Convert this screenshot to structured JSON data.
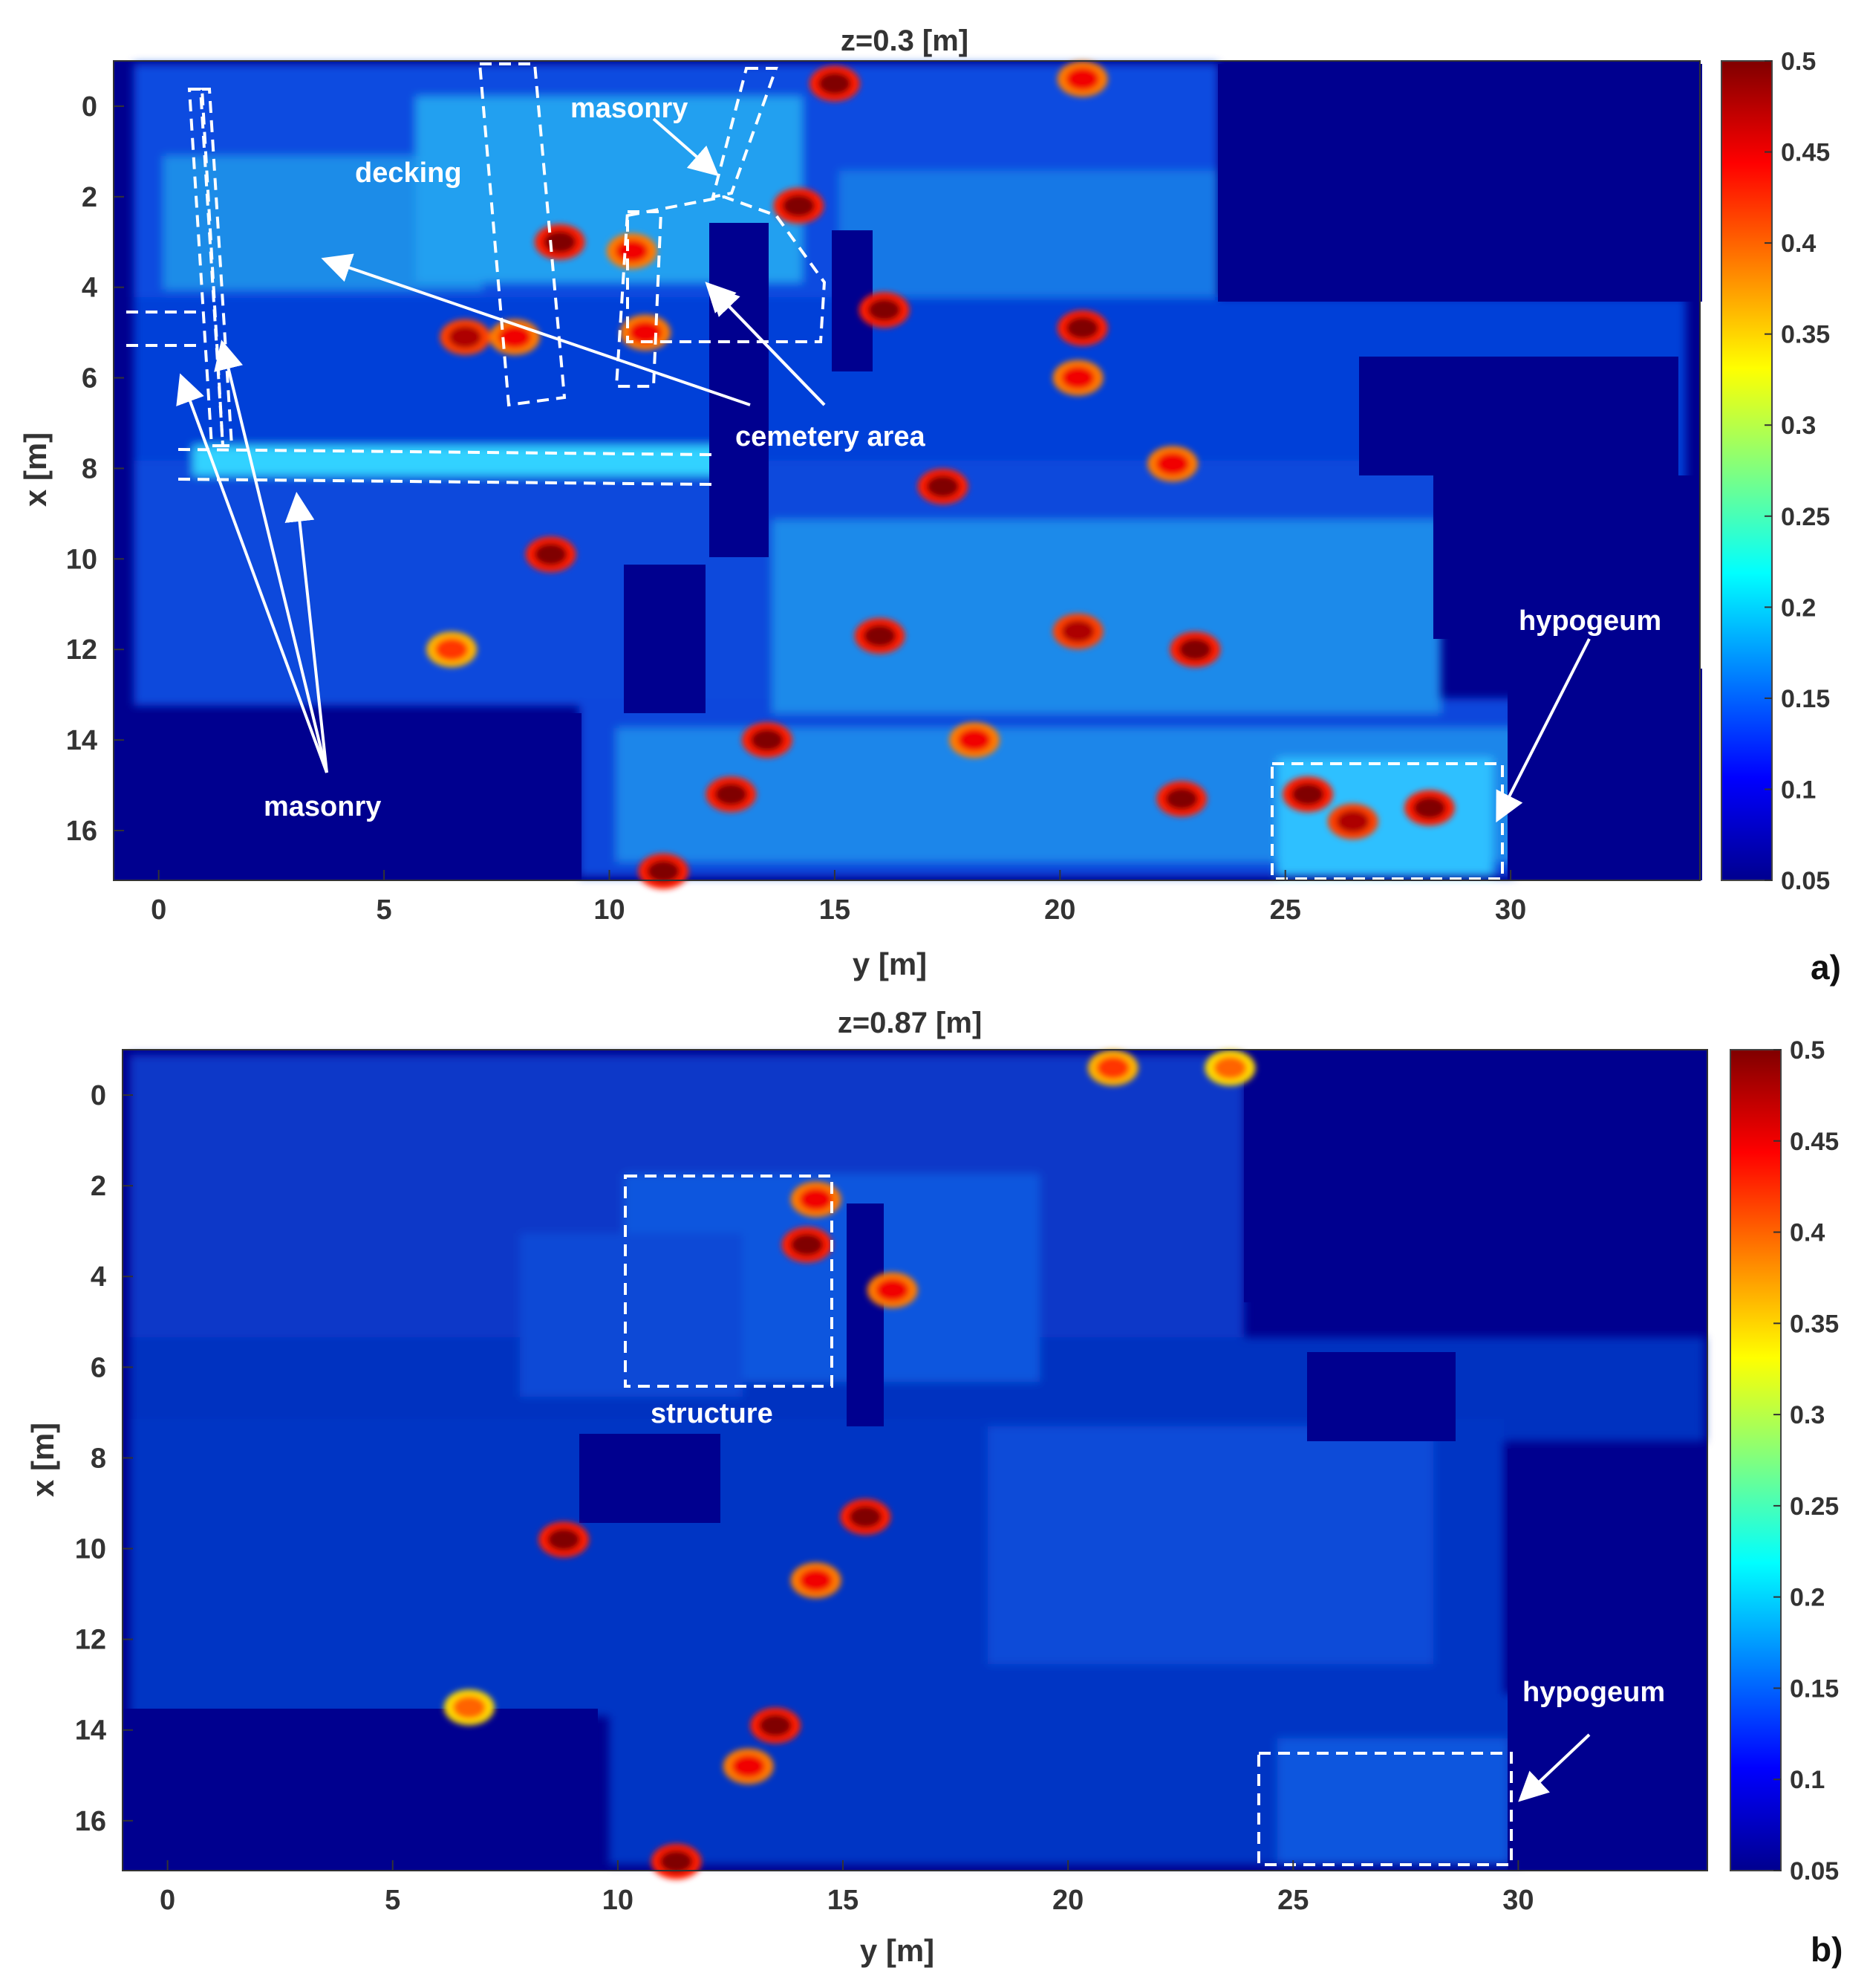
{
  "chart_data": [
    {
      "type": "heatmap",
      "panel_label": "a)",
      "title": "z=0.3 [m]",
      "xlabel": "y [m]",
      "ylabel": "x [m]",
      "xlim": [
        -1,
        34.2
      ],
      "ylim": [
        -1,
        17.1
      ],
      "y_axis_reversed": true,
      "xticks": [
        0,
        5,
        10,
        15,
        20,
        25,
        30
      ],
      "yticks": [
        0,
        2,
        4,
        6,
        8,
        10,
        12,
        14,
        16
      ],
      "colorbar": {
        "colormap": "jet",
        "range": [
          0.05,
          0.5
        ],
        "ticks": [
          "0.5",
          "0.45",
          "0.4",
          "0.35",
          "0.3",
          "0.25",
          "0.2",
          "0.15",
          "0.1",
          "0.05"
        ]
      },
      "annotations": [
        {
          "text": "decking",
          "y": 5.8,
          "x": 1.4
        },
        {
          "text": "masonry",
          "y": 11.0,
          "x": -0.1
        },
        {
          "text": "cemetery area",
          "y": 15.2,
          "x": 7.7
        },
        {
          "text": "masonry",
          "y": 3.8,
          "x": 15.4
        },
        {
          "text": "hypogeum",
          "y": 32.0,
          "x": 11.1
        }
      ],
      "hot_spots": [
        {
          "y": 15.0,
          "x": -0.5,
          "v": 0.5
        },
        {
          "y": 20.5,
          "x": -0.6,
          "v": 0.45
        },
        {
          "y": 8.9,
          "x": 3.0,
          "v": 0.5
        },
        {
          "y": 10.5,
          "x": 3.2,
          "v": 0.45
        },
        {
          "y": 14.2,
          "x": 2.2,
          "v": 0.5
        },
        {
          "y": 16.1,
          "x": 4.5,
          "v": 0.5
        },
        {
          "y": 20.5,
          "x": 4.9,
          "v": 0.5
        },
        {
          "y": 6.8,
          "x": 5.1,
          "v": 0.48
        },
        {
          "y": 7.9,
          "x": 5.1,
          "v": 0.45
        },
        {
          "y": 10.8,
          "x": 5.0,
          "v": 0.45
        },
        {
          "y": 20.4,
          "x": 6.0,
          "v": 0.45
        },
        {
          "y": 17.4,
          "x": 8.4,
          "v": 0.5
        },
        {
          "y": 22.5,
          "x": 7.9,
          "v": 0.45
        },
        {
          "y": 8.7,
          "x": 9.9,
          "v": 0.5
        },
        {
          "y": 16.0,
          "x": 11.7,
          "v": 0.5
        },
        {
          "y": 20.4,
          "x": 11.6,
          "v": 0.48
        },
        {
          "y": 23.0,
          "x": 12.0,
          "v": 0.5
        },
        {
          "y": 6.5,
          "x": 12.0,
          "v": 0.42
        },
        {
          "y": 13.5,
          "x": 14.0,
          "v": 0.5
        },
        {
          "y": 12.7,
          "x": 15.2,
          "v": 0.5
        },
        {
          "y": 18.1,
          "x": 14.0,
          "v": 0.45
        },
        {
          "y": 22.7,
          "x": 15.3,
          "v": 0.5
        },
        {
          "y": 25.5,
          "x": 15.2,
          "v": 0.5
        },
        {
          "y": 26.5,
          "x": 15.8,
          "v": 0.48
        },
        {
          "y": 28.2,
          "x": 15.5,
          "v": 0.5
        },
        {
          "y": 11.2,
          "x": 16.9,
          "v": 0.5
        }
      ]
    },
    {
      "type": "heatmap",
      "panel_label": "b)",
      "title": "z=0.87 [m]",
      "xlabel": "y [m]",
      "ylabel": "x [m]",
      "xlim": [
        -1,
        34.2
      ],
      "ylim": [
        -1,
        17.1
      ],
      "y_axis_reversed": true,
      "xticks": [
        0,
        5,
        10,
        15,
        20,
        25,
        30
      ],
      "yticks": [
        0,
        2,
        4,
        6,
        8,
        10,
        12,
        14,
        16
      ],
      "colorbar": {
        "colormap": "jet",
        "range": [
          0.05,
          0.5
        ],
        "ticks": [
          "0.5",
          "0.45",
          "0.4",
          "0.35",
          "0.3",
          "0.25",
          "0.2",
          "0.15",
          "0.1",
          "0.05"
        ]
      },
      "annotations": [
        {
          "text": "structure",
          "y": 12.4,
          "x": 7.1
        },
        {
          "text": "hypogeum",
          "y": 31.7,
          "x": 13.8
        }
      ],
      "hot_spots": [
        {
          "y": 14.2,
          "x": 3.3,
          "v": 0.5
        },
        {
          "y": 14.4,
          "x": 2.3,
          "v": 0.45
        },
        {
          "y": 16.1,
          "x": 4.3,
          "v": 0.45
        },
        {
          "y": 15.5,
          "x": 9.3,
          "v": 0.5
        },
        {
          "y": 8.8,
          "x": 9.8,
          "v": 0.5
        },
        {
          "y": 14.4,
          "x": 10.7,
          "v": 0.45
        },
        {
          "y": 13.5,
          "x": 13.9,
          "v": 0.5
        },
        {
          "y": 12.9,
          "x": 14.8,
          "v": 0.45
        },
        {
          "y": 11.3,
          "x": 16.9,
          "v": 0.5
        },
        {
          "y": 6.7,
          "x": 13.5,
          "v": 0.4
        },
        {
          "y": 21.0,
          "x": -0.6,
          "v": 0.42
        },
        {
          "y": 23.6,
          "x": -0.6,
          "v": 0.4
        }
      ]
    }
  ]
}
